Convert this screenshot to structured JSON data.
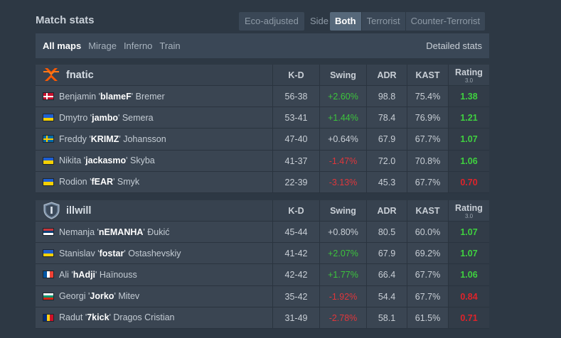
{
  "title": "Match stats",
  "eco_adjusted": "Eco-adjusted",
  "side": {
    "label": "Side",
    "options": [
      "Both",
      "Terrorist",
      "Counter-Terrorist"
    ],
    "selected": "Both"
  },
  "maps": {
    "items": [
      "All maps",
      "Mirage",
      "Inferno",
      "Train"
    ],
    "selected": "All maps",
    "detailed_label": "Detailed stats"
  },
  "columns": {
    "kd": "K-D",
    "swing": "Swing",
    "adr": "ADR",
    "kast": "KAST",
    "rating": "Rating",
    "rating_version": "3.0"
  },
  "teams": [
    {
      "name": "fnatic",
      "logo": "fnatic-logo",
      "players": [
        {
          "flag": "DK",
          "first": "Benjamin",
          "nick": "blameF",
          "last": "Bremer",
          "kd": "56-38",
          "swing": "+2.60%",
          "adr": "98.8",
          "kast": "75.4%",
          "rating": "1.38"
        },
        {
          "flag": "UA",
          "first": "Dmytro",
          "nick": "jambo",
          "last": "Semera",
          "kd": "53-41",
          "swing": "+1.44%",
          "adr": "78.4",
          "kast": "76.9%",
          "rating": "1.21"
        },
        {
          "flag": "SE",
          "first": "Freddy",
          "nick": "KRIMZ",
          "last": "Johansson",
          "kd": "47-40",
          "swing": "+0.64%",
          "adr": "67.9",
          "kast": "67.7%",
          "rating": "1.07"
        },
        {
          "flag": "UA",
          "first": "Nikita",
          "nick": "jackasmo",
          "last": "Skyba",
          "kd": "41-37",
          "swing": "-1.47%",
          "adr": "72.0",
          "kast": "70.8%",
          "rating": "1.06"
        },
        {
          "flag": "UA",
          "first": "Rodion",
          "nick": "fEAR",
          "last": "Smyk",
          "kd": "22-39",
          "swing": "-3.13%",
          "adr": "45.3",
          "kast": "67.7%",
          "rating": "0.70"
        }
      ]
    },
    {
      "name": "illwill",
      "logo": "illwill-logo",
      "players": [
        {
          "flag": "RS",
          "first": "Nemanja",
          "nick": "nEMANHA",
          "last": "Đukić",
          "kd": "45-44",
          "swing": "+0.80%",
          "adr": "80.5",
          "kast": "60.0%",
          "rating": "1.07"
        },
        {
          "flag": "UA",
          "first": "Stanislav",
          "nick": "fostar",
          "last": "Ostashevskiy",
          "kd": "41-42",
          "swing": "+2.07%",
          "adr": "67.9",
          "kast": "69.2%",
          "rating": "1.07"
        },
        {
          "flag": "FR",
          "first": "Ali",
          "nick": "hAdji",
          "last": "Haïnouss",
          "kd": "42-42",
          "swing": "+1.77%",
          "adr": "66.4",
          "kast": "67.7%",
          "rating": "1.06"
        },
        {
          "flag": "BG",
          "first": "Georgi",
          "nick": "Jorko",
          "last": "Mitev",
          "kd": "35-42",
          "swing": "-1.92%",
          "adr": "54.4",
          "kast": "67.7%",
          "rating": "0.84"
        },
        {
          "flag": "RO",
          "first": "Radut",
          "nick": "7kick",
          "last": "Dragos Cristian",
          "kd": "31-49",
          "swing": "-2.78%",
          "adr": "58.1",
          "kast": "61.5%",
          "rating": "0.71"
        }
      ]
    }
  ],
  "colors": {
    "positive": "#3cc43c",
    "negative": "#e0363b",
    "accent_fnatic": "#ff5900"
  }
}
